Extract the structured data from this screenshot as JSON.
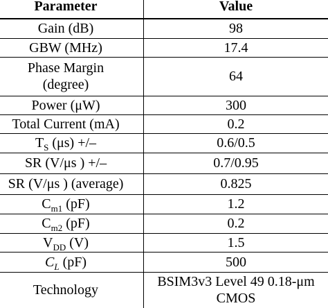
{
  "table": {
    "header": [
      "Parameter",
      "Value"
    ],
    "rows": [
      {
        "parameter": [
          {
            "text": "Gain (dB)"
          }
        ],
        "value": [
          "98"
        ]
      },
      {
        "parameter": [
          {
            "text": "GBW (MHz)"
          }
        ],
        "value": [
          "17.4"
        ]
      },
      {
        "parameter": [
          {
            "text": "Phase Margin"
          },
          {
            "text": "(degree)",
            "newline": true
          }
        ],
        "value": [
          "64"
        ]
      },
      {
        "parameter": [
          {
            "text": "Power (μW)"
          }
        ],
        "value": [
          "300"
        ]
      },
      {
        "parameter": [
          {
            "text": "Total Current (mA)"
          }
        ],
        "value": [
          "0.2"
        ]
      },
      {
        "parameter": [
          {
            "text": "T"
          },
          {
            "text": "S",
            "sub": true
          },
          {
            "text": " (μs) +/–"
          }
        ],
        "value": [
          "0.6/0.5"
        ]
      },
      {
        "parameter": [
          {
            "text": "SR (V/μs ) +/–"
          }
        ],
        "value": [
          "0.7/0.95"
        ]
      },
      {
        "parameter": [
          {
            "text": "SR (V/μs ) (average)"
          }
        ],
        "value": [
          "0.825"
        ]
      },
      {
        "parameter": [
          {
            "text": "C"
          },
          {
            "text": "m1",
            "sub": true
          },
          {
            "text": " (pF)"
          }
        ],
        "value": [
          "1.2"
        ]
      },
      {
        "parameter": [
          {
            "text": "C"
          },
          {
            "text": "m2",
            "sub": true
          },
          {
            "text": " (pF)"
          }
        ],
        "value": [
          "0.2"
        ]
      },
      {
        "parameter": [
          {
            "text": "V"
          },
          {
            "text": "DD",
            "sub": true
          },
          {
            "text": " (V)"
          }
        ],
        "value": [
          "1.5"
        ]
      },
      {
        "parameter": [
          {
            "text": "C",
            "italic": true
          },
          {
            "text": "L",
            "sub": true,
            "italic": true
          },
          {
            "text": " (pF)"
          }
        ],
        "value": [
          "500"
        ]
      },
      {
        "parameter": [
          {
            "text": "Technology"
          }
        ],
        "value": [
          "BSIM3v3 Level 49 0.18-μm",
          "CMOS"
        ]
      }
    ]
  }
}
